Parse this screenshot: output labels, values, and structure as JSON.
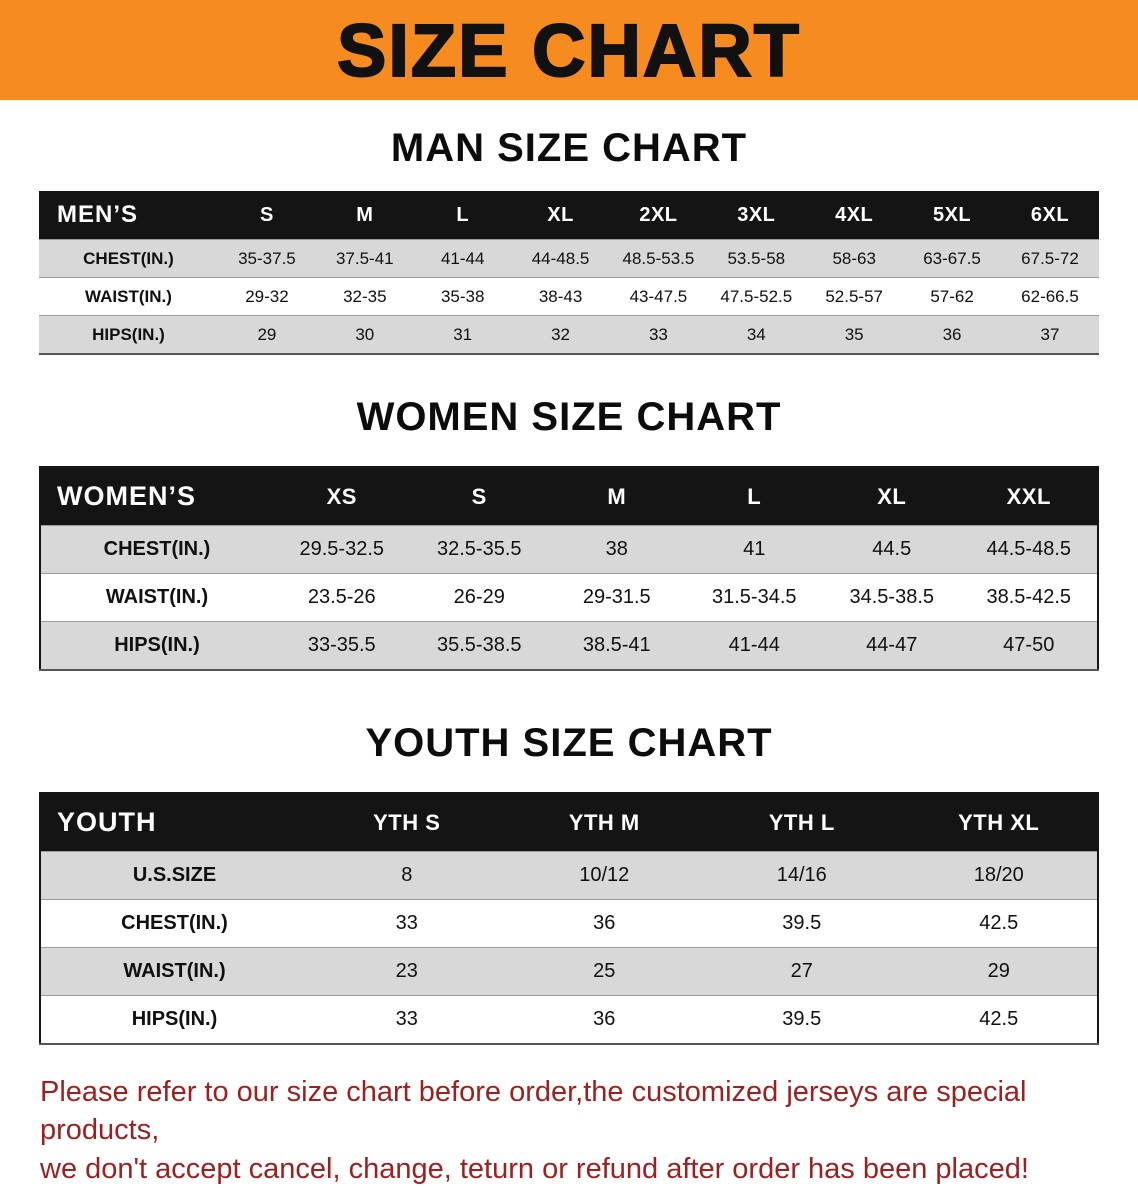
{
  "banner": {
    "title": "SIZE CHART"
  },
  "colors": {
    "banner_bg": "#F68B1F",
    "header_bg": "#141414",
    "row_gray": "#D8D8D8",
    "note_red": "#9E1F1F"
  },
  "men": {
    "heading": "MAN SIZE CHART",
    "corner": "MEN’S",
    "sizes": [
      "S",
      "M",
      "L",
      "XL",
      "2XL",
      "3XL",
      "4XL",
      "5XL",
      "6XL"
    ],
    "rows": [
      {
        "label": "CHEST(IN.)",
        "values": [
          "35-37.5",
          "37.5-41",
          "41-44",
          "44-48.5",
          "48.5-53.5",
          "53.5-58",
          "58-63",
          "63-67.5",
          "67.5-72"
        ]
      },
      {
        "label": "WAIST(IN.)",
        "values": [
          "29-32",
          "32-35",
          "35-38",
          "38-43",
          "43-47.5",
          "47.5-52.5",
          "52.5-57",
          "57-62",
          "62-66.5"
        ]
      },
      {
        "label": "HIPS(IN.)",
        "values": [
          "29",
          "30",
          "31",
          "32",
          "33",
          "34",
          "35",
          "36",
          "37"
        ]
      }
    ]
  },
  "women": {
    "heading": "WOMEN SIZE CHART",
    "corner": "WOMEN’S",
    "sizes": [
      "XS",
      "S",
      "M",
      "L",
      "XL",
      "XXL"
    ],
    "rows": [
      {
        "label": "CHEST(IN.)",
        "values": [
          "29.5-32.5",
          "32.5-35.5",
          "38",
          "41",
          "44.5",
          "44.5-48.5"
        ]
      },
      {
        "label": "WAIST(IN.)",
        "values": [
          "23.5-26",
          "26-29",
          "29-31.5",
          "31.5-34.5",
          "34.5-38.5",
          "38.5-42.5"
        ]
      },
      {
        "label": "HIPS(IN.)",
        "values": [
          "33-35.5",
          "35.5-38.5",
          "38.5-41",
          "41-44",
          "44-47",
          "47-50"
        ]
      }
    ]
  },
  "youth": {
    "heading": "YOUTH SIZE CHART",
    "corner": "YOUTH",
    "sizes": [
      "YTH S",
      "YTH M",
      "YTH L",
      "YTH XL"
    ],
    "rows": [
      {
        "label": "U.S.SIZE",
        "values": [
          "8",
          "10/12",
          "14/16",
          "18/20"
        ]
      },
      {
        "label": "CHEST(IN.)",
        "values": [
          "33",
          "36",
          "39.5",
          "42.5"
        ]
      },
      {
        "label": "WAIST(IN.)",
        "values": [
          "23",
          "25",
          "27",
          "29"
        ]
      },
      {
        "label": "HIPS(IN.)",
        "values": [
          "33",
          "36",
          "39.5",
          "42.5"
        ]
      }
    ]
  },
  "note": {
    "line1": "Please refer to our size chart before order,the customized jerseys are special products,",
    "line2": "we don't accept cancel, change, teturn or refund after order has been placed!"
  }
}
